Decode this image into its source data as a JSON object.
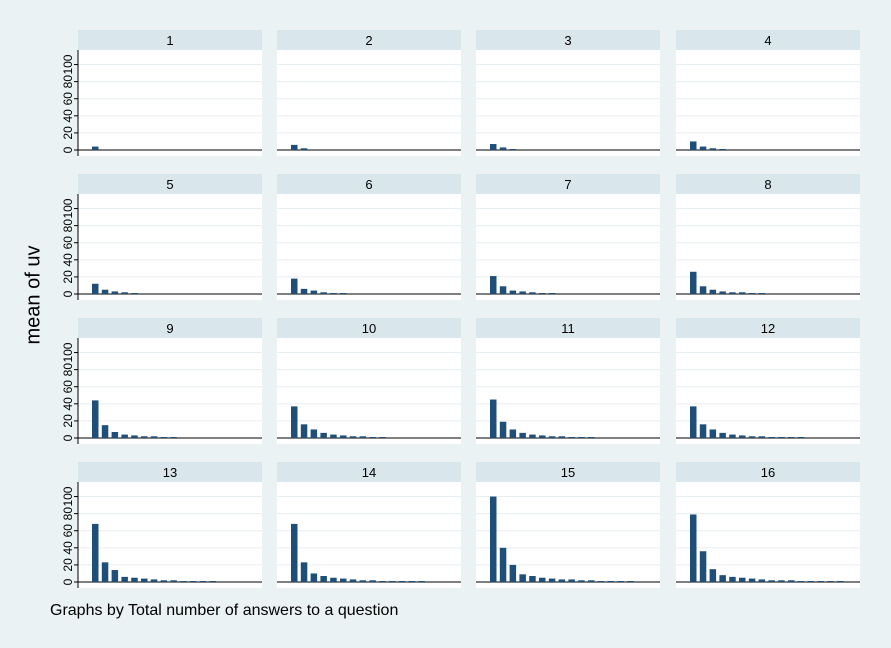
{
  "chart_data": {
    "type": "bar",
    "ylabel": "mean of uv",
    "note": "Graphs by Total number of answers to a question",
    "ylim": [
      0,
      110
    ],
    "yticks": [
      0,
      20,
      40,
      60,
      80,
      100
    ],
    "grid": true,
    "colors": {
      "bar": "#1f4e79",
      "background": "#eaf2f3",
      "strip": "#d9e6eb",
      "plot": "#ffffff",
      "grid": "#e6eef1"
    },
    "panels": [
      {
        "title": "1",
        "values": [
          4
        ]
      },
      {
        "title": "2",
        "values": [
          6,
          2
        ]
      },
      {
        "title": "3",
        "values": [
          7,
          3,
          1
        ]
      },
      {
        "title": "4",
        "values": [
          10,
          4,
          2,
          1
        ]
      },
      {
        "title": "5",
        "values": [
          12,
          5,
          3,
          2,
          1
        ]
      },
      {
        "title": "6",
        "values": [
          18,
          6,
          4,
          2,
          1,
          1
        ]
      },
      {
        "title": "7",
        "values": [
          21,
          9,
          4,
          3,
          2,
          1,
          1
        ]
      },
      {
        "title": "8",
        "values": [
          26,
          9,
          5,
          3,
          2,
          2,
          1,
          1
        ]
      },
      {
        "title": "9",
        "values": [
          44,
          15,
          7,
          4,
          3,
          2,
          2,
          1,
          1
        ]
      },
      {
        "title": "10",
        "values": [
          37,
          16,
          10,
          6,
          4,
          3,
          2,
          2,
          1,
          1
        ]
      },
      {
        "title": "11",
        "values": [
          45,
          19,
          10,
          6,
          4,
          3,
          2,
          2,
          1,
          1,
          1
        ]
      },
      {
        "title": "12",
        "values": [
          37,
          16,
          10,
          6,
          4,
          3,
          2,
          2,
          1,
          1,
          1,
          1
        ]
      },
      {
        "title": "13",
        "values": [
          68,
          23,
          14,
          6,
          5,
          4,
          3,
          2,
          2,
          1,
          1,
          1,
          1
        ]
      },
      {
        "title": "14",
        "values": [
          68,
          23,
          10,
          7,
          5,
          4,
          3,
          2,
          2,
          1,
          1,
          1,
          1,
          1
        ]
      },
      {
        "title": "15",
        "values": [
          100,
          40,
          20,
          9,
          7,
          5,
          4,
          3,
          3,
          2,
          2,
          1,
          1,
          1,
          1
        ]
      },
      {
        "title": "16",
        "values": [
          79,
          36,
          15,
          8,
          6,
          5,
          4,
          3,
          2,
          2,
          2,
          1,
          1,
          1,
          1,
          1
        ]
      }
    ]
  }
}
